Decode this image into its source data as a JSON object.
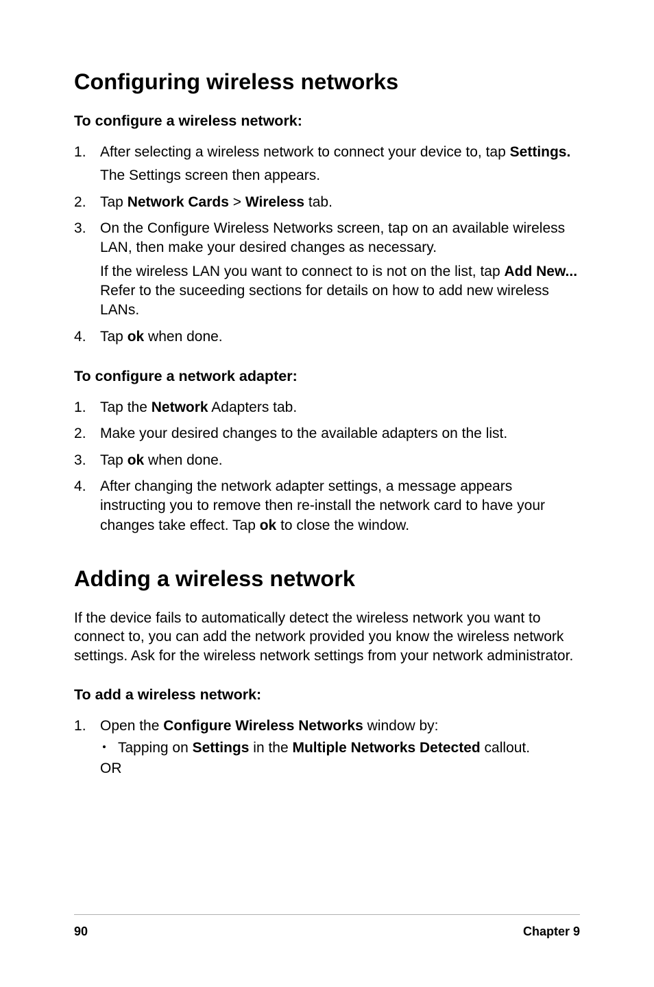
{
  "h1_configuring": "Configuring wireless networks",
  "h2_to_configure_wireless": "To configure a wireless network:",
  "step_cw_1_a": "After selecting a wireless network to connect your device to, tap ",
  "step_cw_1_b": "Settings.",
  "step_cw_1_sub": "The Settings screen then appears.",
  "step_cw_2_a": "Tap ",
  "step_cw_2_b": "Network Cards",
  "step_cw_2_c": " > ",
  "step_cw_2_d": "Wireless",
  "step_cw_2_e": " tab.",
  "step_cw_3_a": "On the Configure Wireless Networks screen, tap on an available wireless LAN, then make your desired changes as necessary.",
  "step_cw_3_sub_a": "If the wireless LAN you want to connect to is not on the list, tap ",
  "step_cw_3_sub_b": "Add New...",
  "step_cw_3_sub_c": " Refer to the suceeding sections for details on how to add new wireless LANs.",
  "step_cw_4_a": "Tap ",
  "step_cw_4_b": "ok",
  "step_cw_4_c": " when done.",
  "h2_to_configure_adapter": "To configure a network adapter:",
  "step_na_1_a": "Tap the ",
  "step_na_1_b": "Network",
  "step_na_1_c": " Adapters tab.",
  "step_na_2": "Make your desired changes to the available adapters on the list.",
  "step_na_3_a": "Tap ",
  "step_na_3_b": "ok",
  "step_na_3_c": " when done.",
  "step_na_4_a": "After changing the network adapter settings, a message appears instructing you to remove then re-install the network card to have your changes take effect. Tap ",
  "step_na_4_b": "ok",
  "step_na_4_c": " to close the window.",
  "h1_adding": "Adding a wireless network",
  "adding_intro": "If the device fails to automatically detect the wireless network you want to connect to, you can add the network provided you know the wireless network settings. Ask for the wireless network settings from your network administrator.",
  "h2_to_add": "To add a wireless network:",
  "step_add_1_a": "Open the ",
  "step_add_1_b": "Configure Wireless Networks",
  "step_add_1_c": " window by:",
  "step_add_1_bullet_a": "Tapping on ",
  "step_add_1_bullet_b": "Settings",
  "step_add_1_bullet_c": " in the ",
  "step_add_1_bullet_d": "Multiple Networks Detected",
  "step_add_1_bullet_e": " callout.",
  "step_add_1_or": "OR",
  "footer_page": "90",
  "footer_chapter": "Chapter 9"
}
